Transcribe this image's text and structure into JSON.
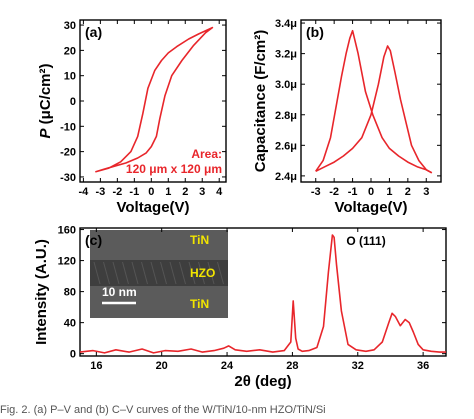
{
  "colors": {
    "curve": "#e8262b",
    "axis": "#000000",
    "inset_label": "#f2e500",
    "inset_bg": "#5b5b5b"
  },
  "caption": "Fig. 2. (a) P–V and (b) C–V curves of the W/TiN/10-nm HZO/TiN/Si",
  "chart_data": [
    {
      "type": "line",
      "panel_label": "(a)",
      "xlabel": "Voltage(V)",
      "ylabel": "P (μC/cm²)",
      "ylabel_parts": {
        "symbol": "P",
        "unit": " (μC/cm²)"
      },
      "xlim": [
        -4.2,
        4.4
      ],
      "ylim": [
        -32,
        32
      ],
      "xticks": [
        -4,
        -3,
        -2,
        -1,
        0,
        1,
        2,
        3,
        4
      ],
      "yticks": [
        -30,
        -20,
        -10,
        0,
        10,
        20,
        30
      ],
      "annotation": {
        "line1": "Area:",
        "line2": "120 μm x 120 μm"
      },
      "series": [
        {
          "x": [
            -3.3,
            -2.5,
            -1.8,
            -1.2,
            -0.8,
            -0.5,
            -0.2,
            0.2,
            0.6,
            1.0,
            1.5,
            2.2,
            2.8,
            3.6,
            3.2,
            2.5,
            1.8,
            1.2,
            0.8,
            0.5,
            0.3,
            0.0,
            -0.3,
            -0.8,
            -1.5,
            -2.2,
            -2.8,
            -3.3
          ],
          "y": [
            -28,
            -26.5,
            -24,
            -20,
            -14,
            -5,
            5,
            12,
            16,
            19,
            21.5,
            24.5,
            26.5,
            29,
            27,
            22,
            16,
            10,
            2,
            -7,
            -14,
            -18,
            -20.5,
            -22.5,
            -24.5,
            -25.8,
            -27,
            -28
          ]
        }
      ]
    },
    {
      "type": "line",
      "panel_label": "(b)",
      "xlabel": "Voltage(V)",
      "ylabel": "Capacitance (F/cm²)",
      "xlim": [
        -3.8,
        3.8
      ],
      "ylim": [
        2.36,
        3.42
      ],
      "xticks": [
        -3,
        -2,
        -1,
        0,
        1,
        2,
        3
      ],
      "yticks": [
        2.4,
        2.6,
        2.8,
        3.0,
        3.2,
        3.4
      ],
      "ytick_labels": [
        "2.4μ",
        "2.6μ",
        "2.8μ",
        "3.0μ",
        "3.2μ",
        "3.4μ"
      ],
      "series": [
        {
          "x": [
            -3.0,
            -2.6,
            -2.2,
            -1.9,
            -1.6,
            -1.35,
            -1.15,
            -1.0,
            -0.7,
            -0.3,
            0.1,
            0.6,
            1.0,
            1.5,
            2.0,
            2.5,
            3.0,
            3.3
          ],
          "y": [
            2.43,
            2.5,
            2.65,
            2.85,
            3.05,
            3.2,
            3.3,
            3.35,
            3.2,
            2.95,
            2.8,
            2.65,
            2.58,
            2.53,
            2.49,
            2.46,
            2.44,
            2.42
          ]
        },
        {
          "x": [
            -3.0,
            -2.5,
            -2.0,
            -1.5,
            -1.0,
            -0.5,
            0.0,
            0.4,
            0.7,
            0.9,
            1.05,
            1.3,
            1.6,
            1.9,
            2.2,
            2.6,
            3.0,
            3.3
          ],
          "y": [
            2.43,
            2.46,
            2.49,
            2.53,
            2.58,
            2.65,
            2.8,
            3.0,
            3.18,
            3.25,
            3.22,
            3.08,
            2.9,
            2.75,
            2.6,
            2.5,
            2.44,
            2.42
          ]
        }
      ]
    },
    {
      "type": "line",
      "panel_label": "(c)",
      "xlabel": "2θ (deg)",
      "ylabel": "Intensity (A.U.)",
      "xlim": [
        15,
        37.4
      ],
      "ylim": [
        -3,
        162
      ],
      "xticks": [
        16,
        20,
        24,
        28,
        32,
        36
      ],
      "yticks": [
        0,
        40,
        80,
        120,
        160
      ],
      "annotation": "O (111)",
      "inset": {
        "labels": [
          "TiN",
          "HZO",
          "TiN"
        ],
        "scale_bar": "10 nm"
      },
      "series": [
        {
          "x": [
            15.0,
            15.8,
            16.5,
            17.2,
            18.0,
            18.8,
            19.5,
            20.2,
            21.0,
            21.8,
            22.5,
            23.2,
            23.8,
            24.1,
            24.5,
            25.2,
            26.0,
            26.8,
            27.5,
            27.9,
            28.05,
            28.2,
            28.35,
            28.6,
            29.0,
            29.5,
            29.9,
            30.2,
            30.45,
            30.55,
            30.7,
            31.0,
            31.4,
            31.9,
            32.5,
            33.0,
            33.5,
            33.9,
            34.1,
            34.3,
            34.6,
            34.9,
            35.15,
            35.4,
            35.7,
            36.0,
            36.5,
            37.0,
            37.4
          ],
          "y": [
            2,
            4,
            1,
            5,
            2,
            6,
            1,
            4,
            3,
            6,
            2,
            4,
            7,
            10,
            5,
            3,
            5,
            2,
            4,
            15,
            68,
            20,
            6,
            3,
            4,
            8,
            35,
            105,
            153,
            150,
            115,
            55,
            12,
            5,
            3,
            5,
            15,
            40,
            52,
            48,
            36,
            44,
            40,
            28,
            12,
            5,
            3,
            2,
            2
          ]
        }
      ]
    }
  ]
}
